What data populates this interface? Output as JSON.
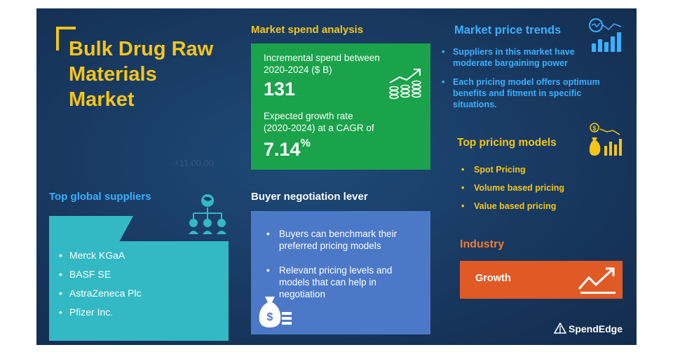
{
  "title": "Bulk Drug Raw Materials Market",
  "title_lines": [
    "Bulk Drug Raw",
    "Materials",
    "Market"
  ],
  "watermark": "+11.00.00",
  "market_spend": {
    "heading": "Market spend analysis",
    "incremental_label_1": "Incremental spend between",
    "incremental_label_2": "2020-2024 ($ B)",
    "incremental_value": "131",
    "growth_label_1": "Expected growth rate",
    "growth_label_2": "(2020-2024) at a CAGR of",
    "growth_value": "7.14",
    "growth_unit": "%"
  },
  "suppliers": {
    "heading": "Top global suppliers",
    "items": [
      "Merck KGaA",
      "BASF SE",
      "AstraZeneca Plc",
      "Pfizer Inc."
    ]
  },
  "buyer": {
    "heading": "Buyer negotiation lever",
    "items": [
      "Buyers can benchmark their preferred pricing models",
      "Relevant pricing levels and models that can help in negotiation"
    ]
  },
  "price_trends": {
    "heading": "Market price trends",
    "items": [
      "Suppliers in this market have moderate bargaining power",
      "Each pricing model offers optimum benefits and fitment in specific situations."
    ]
  },
  "pricing_models": {
    "heading": "Top pricing models",
    "items": [
      "Spot Pricing",
      "Volume based pricing",
      "Value based pricing"
    ]
  },
  "industry": {
    "heading": "Industry",
    "status": "Growth"
  },
  "brand": "SpendEdge",
  "colors": {
    "background": "#17375e",
    "title_yellow": "#f5c518",
    "spend_green": "#1aa34a",
    "supplier_teal": "#33b9c4",
    "buyer_blue": "#4c79c7",
    "trend_blue": "#3ab0ff",
    "industry_orange": "#e05a26"
  },
  "icons": [
    "money-growth-icon",
    "globe-network-icon",
    "money-bag-icon",
    "price-chart-icon",
    "pricing-bars-icon",
    "growth-arrow-icon",
    "spendedge-logo-icon"
  ]
}
